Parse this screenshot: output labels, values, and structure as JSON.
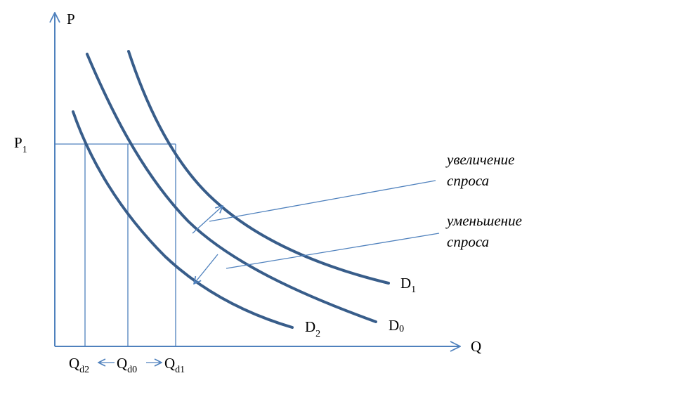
{
  "axes": {
    "y_label": "P",
    "x_label": "Q",
    "price_tick": {
      "main": "P",
      "sub": "1"
    }
  },
  "quantity_ticks": [
    {
      "main": "Q",
      "sub": "d2"
    },
    {
      "main": "Q",
      "sub": "d0"
    },
    {
      "main": "Q",
      "sub": "d1"
    }
  ],
  "curves": [
    {
      "main": "D",
      "sub": "1"
    },
    {
      "main": "D",
      "sub": "0"
    },
    {
      "main": "D",
      "sub": "2"
    }
  ],
  "annotations": {
    "increase": [
      "увеличение",
      "спроса"
    ],
    "decrease": [
      "уменьшение",
      "спроса"
    ]
  },
  "colors": {
    "curve": "#385d8a",
    "axis": "#4f81bd"
  }
}
